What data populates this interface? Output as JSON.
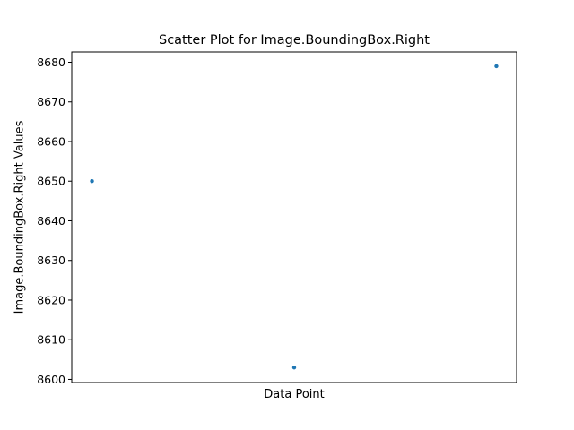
{
  "chart_data": {
    "type": "scatter",
    "title": "Scatter Plot for Image.BoundingBox.Right",
    "xlabel": "Data Point",
    "ylabel": "Image.BoundingBox.Right Values",
    "x": [
      0,
      1,
      2
    ],
    "y": [
      8650,
      8603,
      8679
    ],
    "xlim": [
      -0.1,
      2.1
    ],
    "ylim": [
      8599.2,
      8682.6
    ],
    "yticks": [
      8600,
      8610,
      8620,
      8630,
      8640,
      8650,
      8660,
      8670,
      8680
    ],
    "xticks": [],
    "grid": false,
    "legend": "none",
    "marker_color": "#1f77b4"
  }
}
